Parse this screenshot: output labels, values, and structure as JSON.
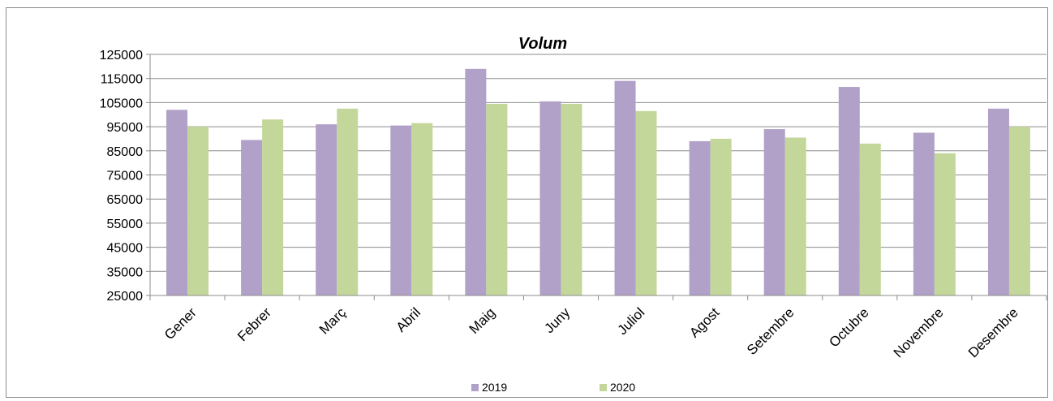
{
  "chart_data": {
    "type": "bar",
    "title": "Volum",
    "xlabel": "",
    "ylabel": "",
    "categories": [
      "Gener",
      "Febrer",
      "Març",
      "Abril",
      "Maig",
      "Juny",
      "Juliol",
      "Agost",
      "Setembre",
      "Octubre",
      "Novembre",
      "Desembre"
    ],
    "series": [
      {
        "name": "2019",
        "color": "#b1a0c7",
        "values": [
          102000,
          89500,
          96000,
          95500,
          119000,
          105500,
          114000,
          89000,
          94000,
          111500,
          92500,
          102500
        ]
      },
      {
        "name": "2020",
        "color": "#c4d79b",
        "values": [
          95000,
          98000,
          102500,
          96500,
          104500,
          104500,
          101500,
          90000,
          90500,
          88000,
          84000,
          95000
        ]
      }
    ],
    "ylim": [
      25000,
      125000
    ],
    "yticks": [
      "125000",
      "115000",
      "105000",
      "95000",
      "85000",
      "75000",
      "65000",
      "55000",
      "45000",
      "35000",
      "25000"
    ],
    "grid": true,
    "legend": "bottom"
  }
}
